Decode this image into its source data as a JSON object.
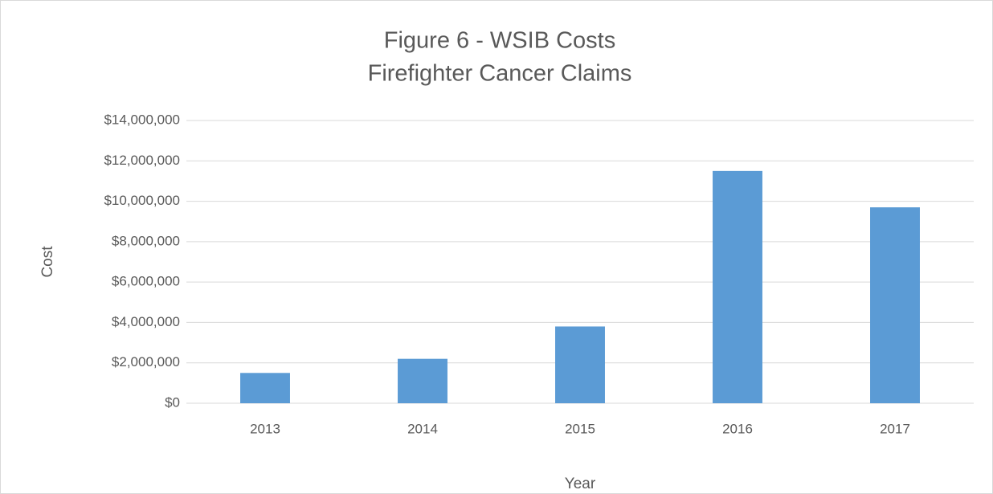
{
  "chart_data": {
    "type": "bar",
    "title": [
      "Figure 6 - WSIB Costs",
      "Firefighter Cancer Claims"
    ],
    "x_label": "Year",
    "y_label": "Cost",
    "categories": [
      "2013",
      "2014",
      "2015",
      "2016",
      "2017"
    ],
    "values": [
      1500000,
      2200000,
      3800000,
      11500000,
      9700000
    ],
    "color": "#5b9bd5",
    "ylim": [
      0,
      14000000
    ],
    "yticks": [
      0,
      {
        "value": 0,
        "label": "$0"
      },
      {
        "value": 2000000,
        "label": "$2,000,000"
      },
      {
        "value": 4000000,
        "label": "$4,000,000"
      },
      {
        "value": 6000000,
        "label": "$6,000,000"
      },
      {
        "value": 8000000,
        "label": "$8,000,000"
      },
      {
        "value": 10000000,
        "label": "$10,000,000"
      },
      {
        "value": 12000000,
        "label": "$12,000,000"
      },
      {
        "value": 14000000,
        "label": "$14,000,000"
      }
    ],
    "grid": true
  }
}
